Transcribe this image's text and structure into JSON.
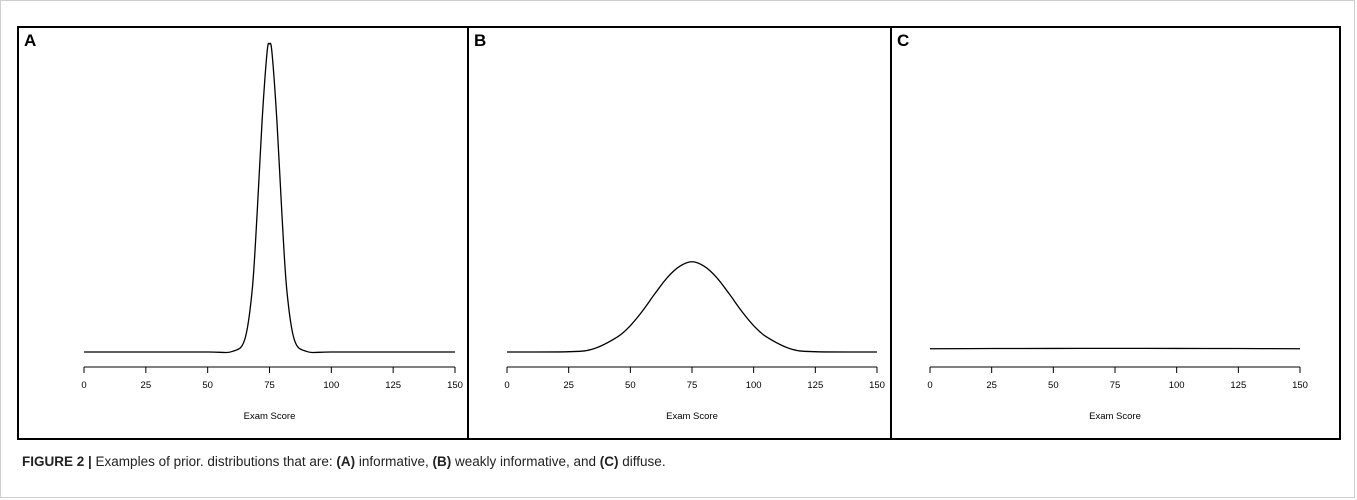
{
  "chart_data": [
    {
      "type": "line",
      "panel_label": "A",
      "xlabel": "Exam Score",
      "ylabel": "",
      "xlim": [
        0,
        150
      ],
      "xticks": [
        "0",
        "25",
        "50",
        "75",
        "100",
        "125",
        "150"
      ],
      "x": [
        0,
        25,
        50,
        60,
        65,
        68,
        70,
        72,
        74,
        75,
        76,
        78,
        80,
        82,
        85,
        90,
        100,
        125,
        150
      ],
      "y": [
        0.0,
        0.0,
        0.0,
        0.0002,
        0.0044,
        0.0216,
        0.0484,
        0.0806,
        0.1045,
        0.1075,
        0.1045,
        0.0806,
        0.0484,
        0.0216,
        0.0044,
        0.0002,
        0.0,
        0.0,
        0.0
      ],
      "grid": false
    },
    {
      "type": "line",
      "panel_label": "B",
      "xlabel": "Exam Score",
      "ylabel": "",
      "xlim": [
        0,
        150
      ],
      "xticks": [
        "0",
        "25",
        "50",
        "75",
        "100",
        "125",
        "150"
      ],
      "x": [
        0,
        25,
        35,
        45,
        50,
        55,
        60,
        65,
        70,
        75,
        80,
        85,
        90,
        95,
        100,
        105,
        115,
        125,
        150
      ],
      "y": [
        0.0,
        0.0001,
        0.0011,
        0.0054,
        0.0092,
        0.0144,
        0.0204,
        0.026,
        0.0299,
        0.0315,
        0.0299,
        0.026,
        0.0204,
        0.0144,
        0.0092,
        0.0054,
        0.0011,
        0.0001,
        0.0
      ],
      "grid": false
    },
    {
      "type": "line",
      "panel_label": "C",
      "xlabel": "Exam Score",
      "ylabel": "",
      "xlim": [
        0,
        150
      ],
      "xticks": [
        "0",
        "25",
        "50",
        "75",
        "100",
        "125",
        "150"
      ],
      "x": [
        0,
        25,
        50,
        75,
        100,
        125,
        150
      ],
      "y": [
        0.00114,
        0.00121,
        0.00125,
        0.00127,
        0.00125,
        0.00121,
        0.00114
      ],
      "grid": false
    }
  ],
  "caption": {
    "label": "FIGURE 2 |",
    "text_1": " Examples of prior. distributions that are: ",
    "a": "(A)",
    "text_2": " informative, ",
    "b": "(B)",
    "text_3": " weakly informative, and ",
    "c": "(C)",
    "text_4": " diffuse."
  }
}
